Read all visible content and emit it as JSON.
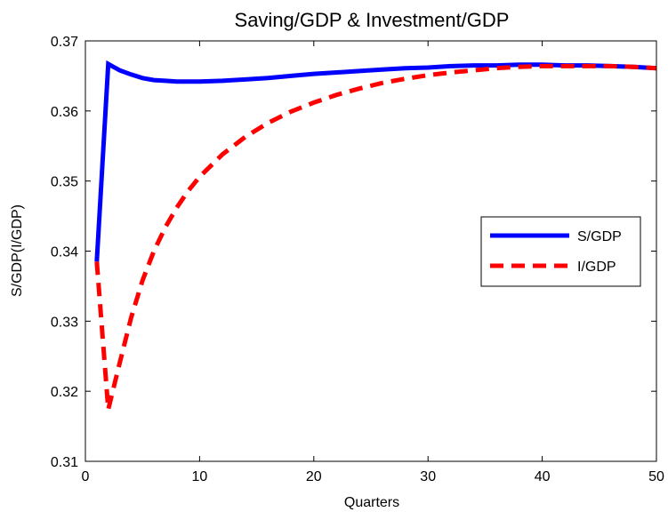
{
  "chart_data": {
    "type": "line",
    "title": "Saving/GDP & Investment/GDP",
    "xlabel": "Quarters",
    "ylabel": "S/GDP(I/GDP)",
    "xlim": [
      0,
      50
    ],
    "ylim": [
      0.31,
      0.37
    ],
    "xticks": [
      0,
      10,
      20,
      30,
      40,
      50
    ],
    "yticks": [
      0.31,
      0.32,
      0.33,
      0.34,
      0.35,
      0.36,
      0.37
    ],
    "xtick_labels": [
      "0",
      "10",
      "20",
      "30",
      "40",
      "50"
    ],
    "ytick_labels": [
      "0.31",
      "0.32",
      "0.33",
      "0.34",
      "0.35",
      "0.36",
      "0.37"
    ],
    "grid": false,
    "legend_position": "right",
    "series": [
      {
        "name": "S/GDP",
        "color": "#0000ff",
        "style": "solid",
        "x": [
          1,
          2,
          3,
          4,
          5,
          6,
          7,
          8,
          9,
          10,
          12,
          14,
          16,
          18,
          20,
          22,
          24,
          26,
          28,
          30,
          32,
          34,
          36,
          38,
          40,
          42,
          44,
          46,
          48,
          50
        ],
        "y": [
          0.3385,
          0.3667,
          0.3658,
          0.3652,
          0.3647,
          0.3644,
          0.3643,
          0.3642,
          0.3642,
          0.3642,
          0.3643,
          0.3645,
          0.3647,
          0.365,
          0.3653,
          0.3655,
          0.3657,
          0.3659,
          0.3661,
          0.3662,
          0.3664,
          0.3665,
          0.3665,
          0.3666,
          0.3666,
          0.3665,
          0.3665,
          0.3664,
          0.3663,
          0.3661
        ]
      },
      {
        "name": "I/GDP",
        "color": "#ff0000",
        "style": "dashed",
        "x": [
          1,
          2,
          3,
          4,
          5,
          6,
          7,
          8,
          9,
          10,
          12,
          14,
          16,
          18,
          20,
          22,
          24,
          26,
          28,
          30,
          32,
          34,
          36,
          38,
          40,
          42,
          44,
          46,
          48,
          50
        ],
        "y": [
          0.3385,
          0.3174,
          0.324,
          0.3305,
          0.3358,
          0.34,
          0.3434,
          0.3462,
          0.3486,
          0.3506,
          0.3538,
          0.3563,
          0.3583,
          0.3599,
          0.3612,
          0.3623,
          0.3632,
          0.364,
          0.3646,
          0.3651,
          0.3655,
          0.3658,
          0.3661,
          0.3663,
          0.3664,
          0.3664,
          0.3664,
          0.3664,
          0.3663,
          0.3661
        ]
      }
    ]
  }
}
